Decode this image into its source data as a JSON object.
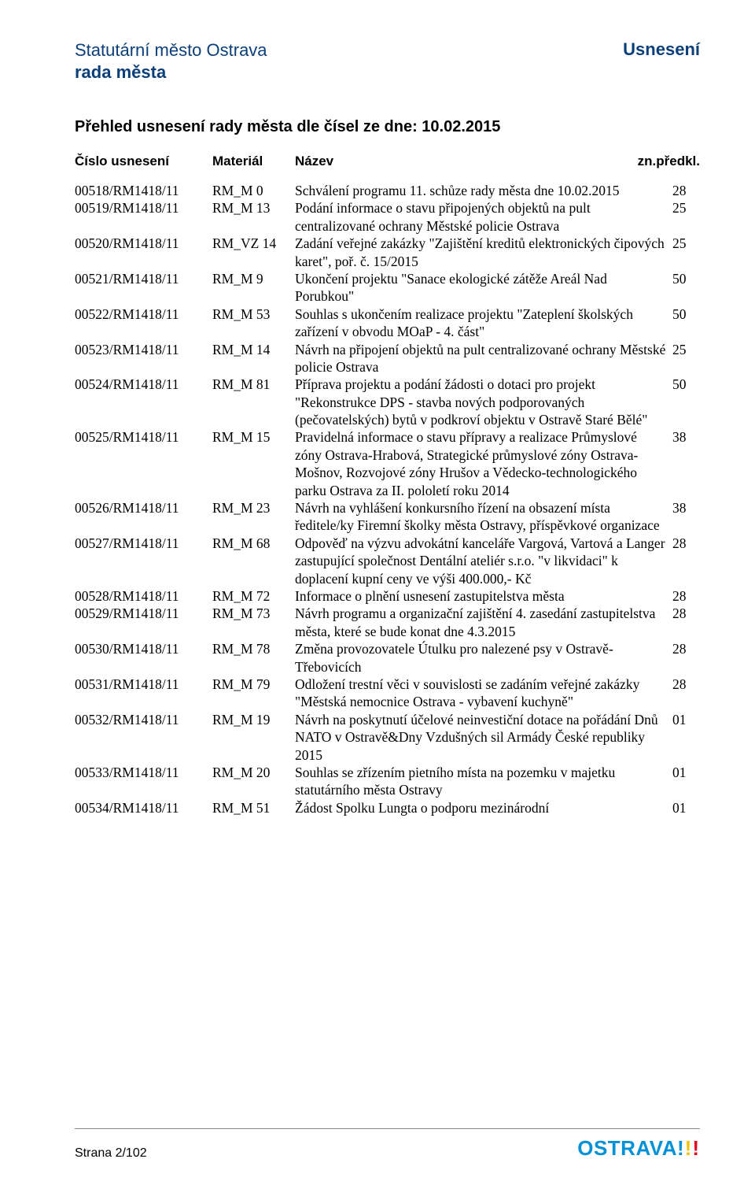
{
  "header": {
    "left_line1": "Statutární město Ostrava",
    "left_line2": "rada města",
    "right": "Usnesení"
  },
  "title": "Přehled usnesení rady města dle čísel ze dne: 10.02.2015",
  "columns": {
    "c1": "Číslo usnesení",
    "c2": "Materiál",
    "c3": "Název",
    "c4": "zn.předkl."
  },
  "rows": [
    {
      "c1": "00518/RM1418/11",
      "c2": "RM_M 0",
      "c3": "Schválení programu 11. schůze rady města dne 10.02.2015",
      "c4": "28"
    },
    {
      "c1": "00519/RM1418/11",
      "c2": "RM_M 13",
      "c3": "Podání informace o stavu připojených objektů na pult centralizované ochrany Městské policie Ostrava",
      "c4": "25"
    },
    {
      "c1": "00520/RM1418/11",
      "c2": "RM_VZ 14",
      "c3": "Zadání veřejné zakázky \"Zajištění kreditů elektronických čipových karet\", poř. č. 15/2015",
      "c4": "25"
    },
    {
      "c1": "00521/RM1418/11",
      "c2": "RM_M 9",
      "c3": "Ukončení projektu \"Sanace ekologické zátěže Areál Nad Porubkou\"",
      "c4": "50"
    },
    {
      "c1": "00522/RM1418/11",
      "c2": "RM_M 53",
      "c3": "Souhlas s ukončením realizace projektu \"Zateplení školských zařízení v obvodu MOaP - 4. část\"",
      "c4": "50"
    },
    {
      "c1": "00523/RM1418/11",
      "c2": "RM_M 14",
      "c3": "Návrh na připojení objektů na pult centralizované ochrany Městské policie Ostrava",
      "c4": "25"
    },
    {
      "c1": "00524/RM1418/11",
      "c2": "RM_M 81",
      "c3": "Příprava projektu a podání žádosti o dotaci pro projekt \"Rekonstrukce DPS - stavba nových podporovaných (pečovatelských) bytů v podkroví objektu v Ostravě Staré Bělé\"",
      "c4": "50"
    },
    {
      "c1": "00525/RM1418/11",
      "c2": "RM_M 15",
      "c3": "Pravidelná informace o stavu přípravy a realizace Průmyslové zóny Ostrava-Hrabová, Strategické průmyslové zóny Ostrava-Mošnov, Rozvojové zóny Hrušov a Vědecko-technologického parku Ostrava za II. pololetí roku 2014",
      "c4": "38"
    },
    {
      "c1": "00526/RM1418/11",
      "c2": "RM_M 23",
      "c3": "Návrh na vyhlášení konkursního řízení na obsazení místa ředitele/ky Firemní školky města Ostravy, příspěvkové organizace",
      "c4": "38"
    },
    {
      "c1": "00527/RM1418/11",
      "c2": "RM_M 68",
      "c3": "Odpověď na výzvu advokátní kanceláře Vargová, Vartová a Langer zastupující společnost Dentální ateliér s.r.o. \"v likvidaci\" k doplacení kupní ceny ve výši 400.000,- Kč",
      "c4": "28"
    },
    {
      "c1": "00528/RM1418/11",
      "c2": "RM_M 72",
      "c3": "Informace o plnění usnesení zastupitelstva města",
      "c4": "28"
    },
    {
      "c1": "00529/RM1418/11",
      "c2": "RM_M 73",
      "c3": "Návrh programu a organizační zajištění 4. zasedání zastupitelstva města, které se bude konat dne 4.3.2015",
      "c4": "28"
    },
    {
      "c1": "00530/RM1418/11",
      "c2": "RM_M 78",
      "c3": "Změna provozovatele Útulku pro nalezené psy v Ostravě-Třebovicích",
      "c4": "28"
    },
    {
      "c1": "00531/RM1418/11",
      "c2": "RM_M 79",
      "c3": "Odložení trestní věci v souvislosti se zadáním veřejné zakázky \"Městská nemocnice Ostrava - vybavení kuchyně\"",
      "c4": "28"
    },
    {
      "c1": "00532/RM1418/11",
      "c2": "RM_M 19",
      "c3": "Návrh na poskytnutí účelové neinvestiční dotace na pořádání Dnů NATO v Ostravě&Dny Vzdušných sil Armády České republiky 2015",
      "c4": "01"
    },
    {
      "c1": "00533/RM1418/11",
      "c2": "RM_M 20",
      "c3": "Souhlas se zřízením pietního místa na pozemku v majetku statutárního města Ostravy",
      "c4": "01"
    },
    {
      "c1": "00534/RM1418/11",
      "c2": "RM_M 51",
      "c3": "Žádost Spolku Lungta o podporu mezinárodní",
      "c4": "01"
    }
  ],
  "footer": {
    "page": "Strana 2/102",
    "logo_text": "OSTRAVA"
  }
}
